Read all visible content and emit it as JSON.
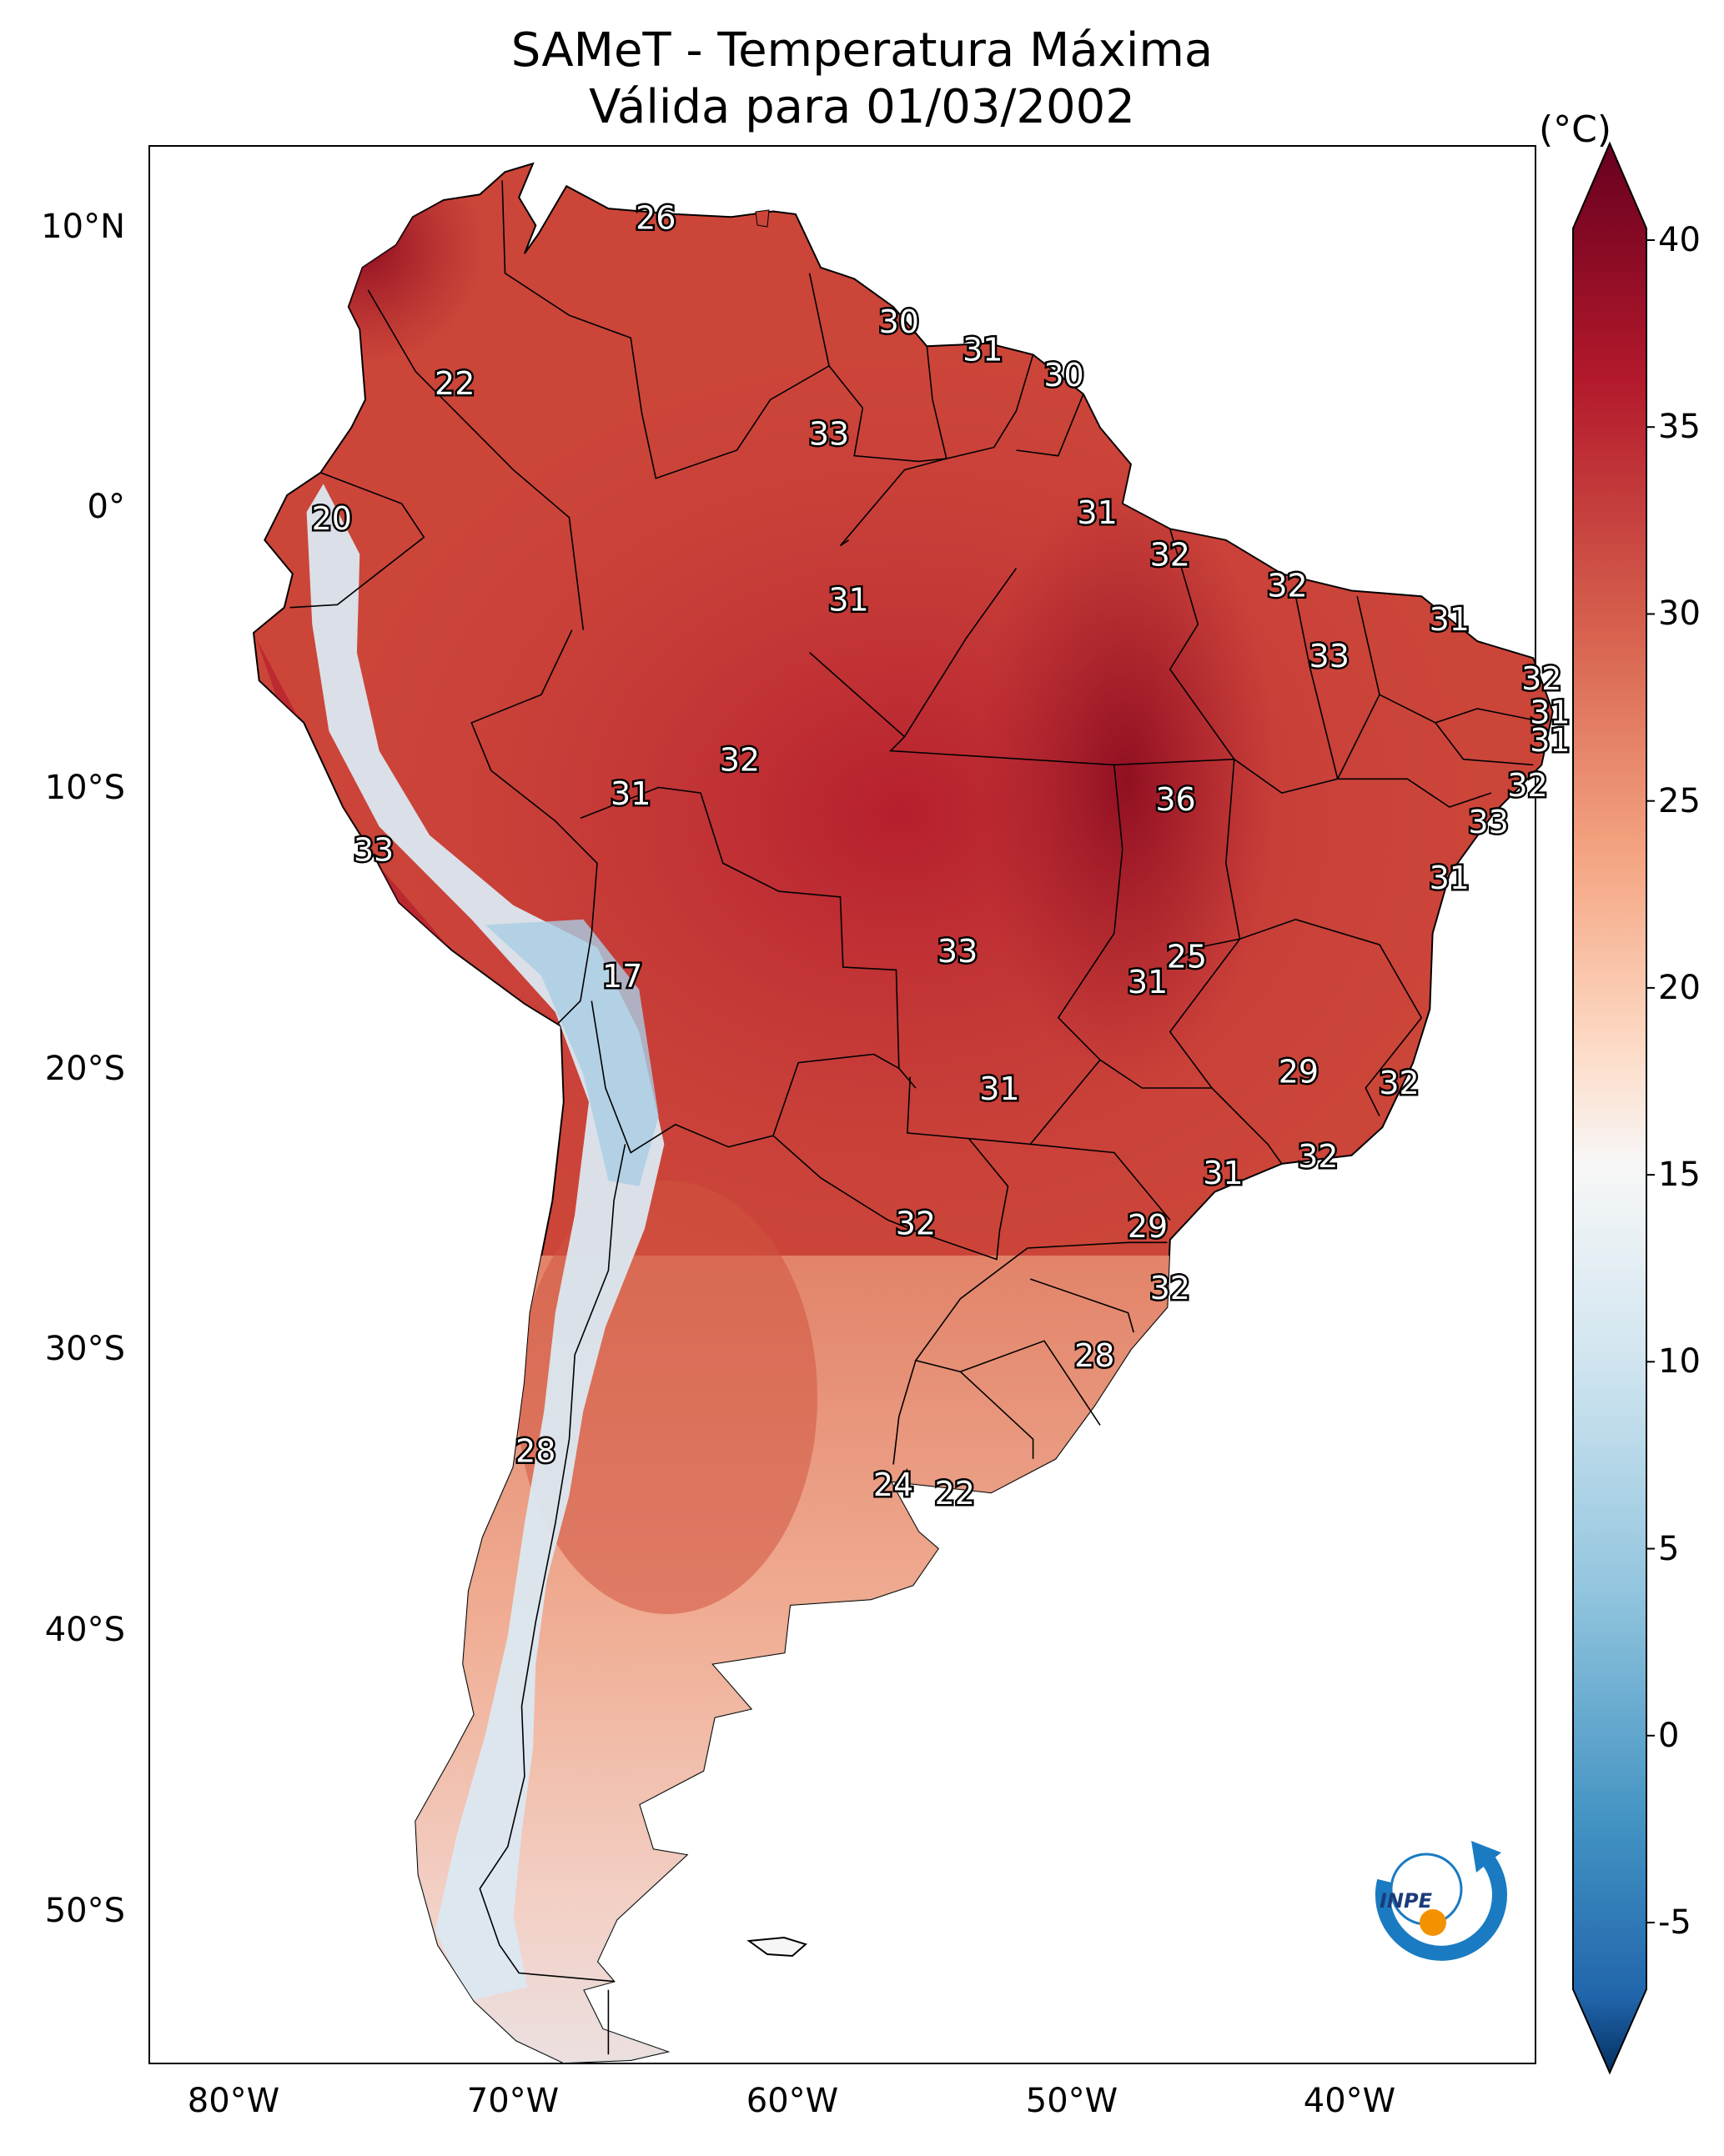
{
  "title": {
    "line1": "SAMeT - Temperatura Máxima",
    "line2": "Válida para 01/03/2002"
  },
  "colorbar": {
    "unit": "(°C)",
    "ticks": [
      "40",
      "35",
      "30",
      "25",
      "20",
      "15",
      "10",
      "5",
      "0",
      "-5"
    ],
    "range": [
      -5,
      40
    ],
    "colormap": "RdBu_r"
  },
  "axes": {
    "lat_labels": [
      "10°N",
      "0°",
      "10°S",
      "20°S",
      "30°S",
      "40°S",
      "50°S"
    ],
    "lon_labels": [
      "80°W",
      "70°W",
      "60°W",
      "50°W",
      "40°W"
    ]
  },
  "station_values": [
    {
      "value": "26",
      "lon": -66.9,
      "lat": 10.5
    },
    {
      "value": "22",
      "lon": -74.1,
      "lat": 4.6
    },
    {
      "value": "30",
      "lon": -58.2,
      "lat": 6.8
    },
    {
      "value": "31",
      "lon": -55.2,
      "lat": 5.8
    },
    {
      "value": "30",
      "lon": -52.3,
      "lat": 4.9
    },
    {
      "value": "33",
      "lon": -60.7,
      "lat": 2.8
    },
    {
      "value": "20",
      "lon": -78.5,
      "lat": -0.2
    },
    {
      "value": "31",
      "lon": -51.1,
      "lat": 0.0
    },
    {
      "value": "32",
      "lon": -48.5,
      "lat": -1.5
    },
    {
      "value": "31",
      "lon": -60.0,
      "lat": -3.1
    },
    {
      "value": "32",
      "lon": -44.3,
      "lat": -2.6
    },
    {
      "value": "31",
      "lon": -38.5,
      "lat": -3.8
    },
    {
      "value": "33",
      "lon": -42.8,
      "lat": -5.1
    },
    {
      "value": "32",
      "lon": -35.2,
      "lat": -5.9
    },
    {
      "value": "31",
      "lon": -34.9,
      "lat": -7.1
    },
    {
      "value": "31",
      "lon": -34.9,
      "lat": -8.1
    },
    {
      "value": "32",
      "lon": -63.9,
      "lat": -8.8
    },
    {
      "value": "31",
      "lon": -67.8,
      "lat": -10.0
    },
    {
      "value": "36",
      "lon": -48.3,
      "lat": -10.2
    },
    {
      "value": "32",
      "lon": -35.7,
      "lat": -9.7
    },
    {
      "value": "33",
      "lon": -37.1,
      "lat": -11.0
    },
    {
      "value": "33",
      "lon": -77.0,
      "lat": -12.0
    },
    {
      "value": "31",
      "lon": -38.5,
      "lat": -13.0
    },
    {
      "value": "33",
      "lon": -56.1,
      "lat": -15.6
    },
    {
      "value": "25",
      "lon": -47.9,
      "lat": -15.8
    },
    {
      "value": "17",
      "lon": -68.1,
      "lat": -16.5
    },
    {
      "value": "31",
      "lon": -49.3,
      "lat": -16.7
    },
    {
      "value": "29",
      "lon": -43.9,
      "lat": -19.9
    },
    {
      "value": "31",
      "lon": -54.6,
      "lat": -20.5
    },
    {
      "value": "32",
      "lon": -40.3,
      "lat": -20.3
    },
    {
      "value": "32",
      "lon": -43.2,
      "lat": -22.9
    },
    {
      "value": "31",
      "lon": -46.6,
      "lat": -23.5
    },
    {
      "value": "32",
      "lon": -57.6,
      "lat": -25.3
    },
    {
      "value": "29",
      "lon": -49.3,
      "lat": -25.4
    },
    {
      "value": "32",
      "lon": -48.5,
      "lat": -27.6
    },
    {
      "value": "28",
      "lon": -51.2,
      "lat": -30.0
    },
    {
      "value": "28",
      "lon": -71.2,
      "lat": -33.4
    },
    {
      "value": "24",
      "lon": -58.4,
      "lat": -34.6
    },
    {
      "value": "22",
      "lon": -56.2,
      "lat": -34.9
    }
  ],
  "logo": {
    "text": "INPE"
  },
  "colors": {
    "land_hot": "#b2182b",
    "land_cold": "#92c5de",
    "border": "#000000"
  }
}
